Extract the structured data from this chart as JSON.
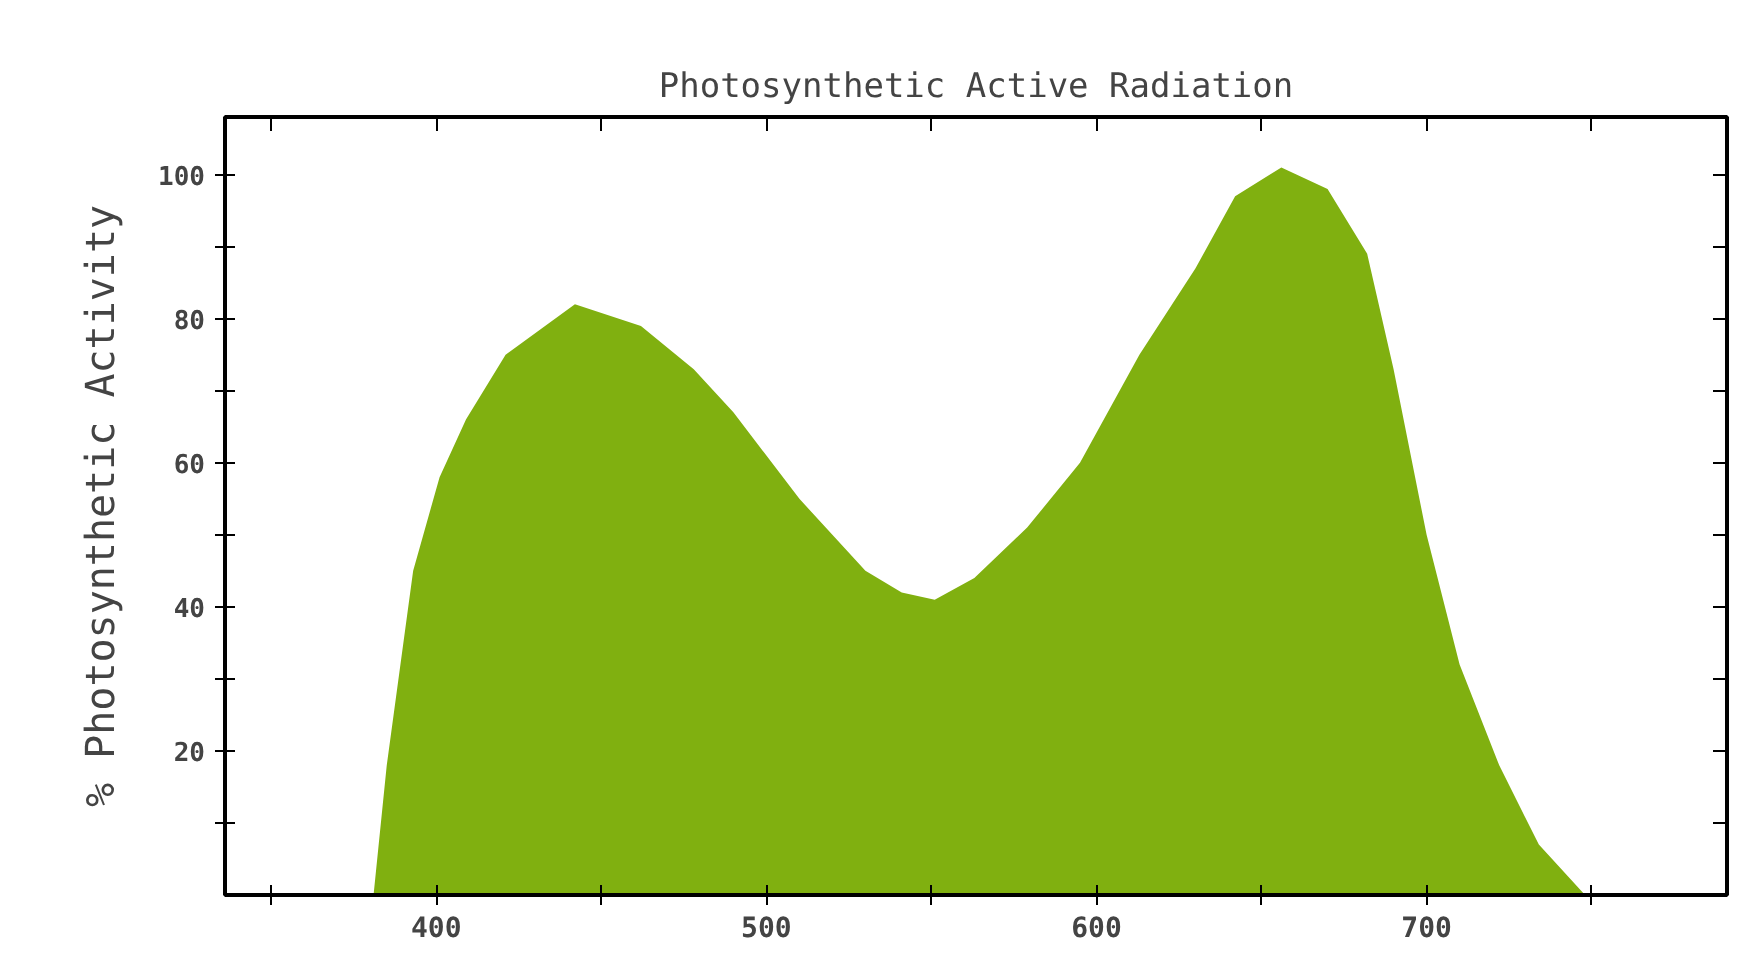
{
  "chart_data": {
    "type": "area",
    "title": "Photosynthetic Active Radiation",
    "ylabel": "% Photosynthetic Activity",
    "x": [
      381,
      385,
      393,
      401,
      409,
      421,
      442,
      462,
      478,
      490,
      510,
      530,
      541,
      551,
      563,
      579,
      595,
      613,
      630,
      642,
      656,
      670,
      682,
      690,
      700,
      710,
      722,
      734,
      748
    ],
    "values": [
      0,
      18,
      45,
      58,
      66,
      75,
      82,
      79,
      73,
      67,
      55,
      45,
      42,
      41,
      44,
      51,
      60,
      75,
      87,
      97,
      101,
      98,
      89,
      73,
      50,
      32,
      18,
      7,
      0
    ],
    "colors": [
      "#1a10b0",
      "#1810a8",
      "#1612a0",
      "#15189a",
      "#141e90",
      "#152882",
      "#143a62",
      "#104540",
      "#0e4c2c",
      "#0c5420",
      "#146418",
      "#2a7a10",
      "#408a10",
      "#5a9a10",
      "#80b010",
      "#c8d810",
      "#f4f010",
      "#ffc000",
      "#ff9800",
      "#ff8000",
      "#ff6800",
      "#ff5000",
      "#ff3a00",
      "#ff2a00",
      "#ff1800",
      "#ff0a00",
      "#ff0000",
      "#f80000",
      "#f00000"
    ],
    "xlim": [
      336,
      791
    ],
    "ylim": [
      0,
      108
    ],
    "xticks": [
      {
        "value": 350,
        "label": null
      },
      400,
      {
        "value": 450,
        "label": null
      },
      500,
      {
        "value": 550,
        "label": null
      },
      600,
      {
        "value": 650,
        "label": null
      },
      700,
      {
        "value": 750,
        "label": null
      }
    ],
    "yticks": [
      {
        "value": 10,
        "label": null
      },
      20,
      {
        "value": 30,
        "label": null
      },
      40,
      {
        "value": 50,
        "label": null
      },
      60,
      {
        "value": 70,
        "label": null
      },
      80,
      {
        "value": 90,
        "label": null
      },
      100
    ],
    "grid": false
  }
}
